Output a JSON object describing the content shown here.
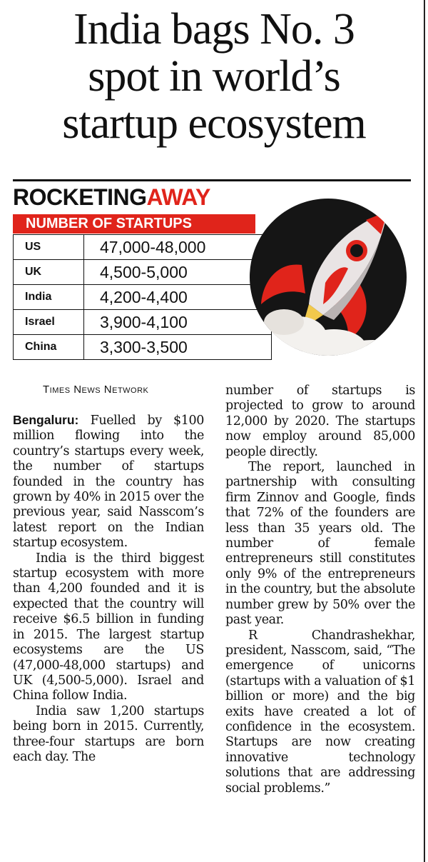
{
  "headline": {
    "line1": "India bags No. 3",
    "line2": "spot in world’s",
    "line3": "startup ecosystem"
  },
  "graphic": {
    "title_part1": "ROCKETING",
    "title_part2": "AWAY",
    "table_header": "NUMBER OF STARTUPS",
    "rows": [
      {
        "country": "US",
        "value": "47,000-48,000"
      },
      {
        "country": "UK",
        "value": "4,500-5,000"
      },
      {
        "country": "India",
        "value": "4,200-4,400"
      },
      {
        "country": "Israel",
        "value": "3,900-4,100"
      },
      {
        "country": "China",
        "value": "3,300-3,500"
      }
    ],
    "colors": {
      "accent": "#e0241b",
      "rocket_bg": "#151515"
    },
    "illustration": "rocket-illustration"
  },
  "byline": "Times News Network",
  "article": {
    "dateline": "Bengaluru:",
    "p1": "Fuelled by $100 million flowing into the country’s startups every week, the number of startups founded in the country has grown by 40% in 2015 over the previous year, said Nasscom’s latest report on the Indian startup ecosystem.",
    "p2": "India is the third biggest startup ecosystem with more than 4,200 founded and it is expected that the country will receive $6.5 billion in funding in 2015. The largest startup ecosystems are the US (47,000-48,000 startups) and UK (4,500-5,000). Israel and China follow India.",
    "p3": "India saw 1,200 startups being born in 2015. Currently, three-four startups are born each day. The",
    "p3_cont": "number of startups is projected to grow to around 12,000 by 2020. The startups now employ around 85,000 people directly.",
    "p4": "The report, launched in partnership with consulting firm Zinnov and Google, finds that 72% of the founders are less than 35 years old. The number of female entrepreneurs still constitutes only 9% of the entrepreneurs in the country, but the absolute number grew by 50% over the past year.",
    "p5": "R Chandrashekhar, president, Nasscom, said, “The emergence of unicorns (startups with a valuation of $1 billion or more) and the big exits have created a lot of confidence in the ecosystem. Startups are now creating innovative technology solutions that are addressing social problems.”"
  }
}
